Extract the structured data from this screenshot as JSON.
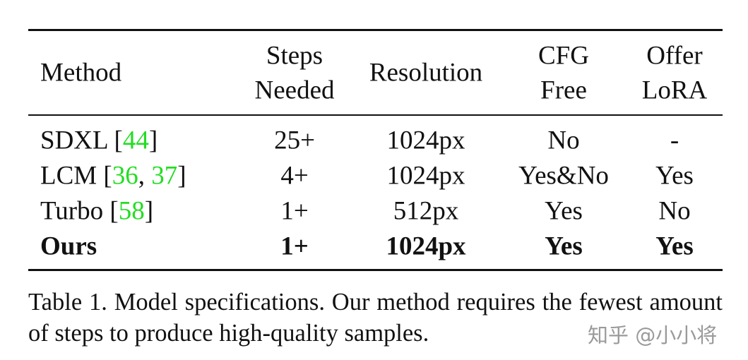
{
  "table": {
    "citation_color": "#22dd22",
    "header": [
      [
        "Method"
      ],
      [
        "Steps",
        "Needed"
      ],
      [
        "Resolution"
      ],
      [
        "CFG",
        "Free"
      ],
      [
        "Offer",
        "LoRA"
      ]
    ],
    "rows": [
      {
        "bold": false,
        "cells": [
          [
            {
              "text": "SDXL ["
            },
            {
              "text": "44",
              "cite": true
            },
            {
              "text": "]"
            }
          ],
          "25+",
          "1024px",
          "No",
          "-"
        ]
      },
      {
        "bold": false,
        "cells": [
          [
            {
              "text": "LCM ["
            },
            {
              "text": "36",
              "cite": true
            },
            {
              "text": ", "
            },
            {
              "text": "37",
              "cite": true
            },
            {
              "text": "]"
            }
          ],
          "4+",
          "1024px",
          "Yes&No",
          "Yes"
        ]
      },
      {
        "bold": false,
        "cells": [
          [
            {
              "text": "Turbo ["
            },
            {
              "text": "58",
              "cite": true
            },
            {
              "text": "]"
            }
          ],
          "1+",
          "512px",
          "Yes",
          "No"
        ]
      },
      {
        "bold": true,
        "cells": [
          [
            {
              "text": "Ours"
            }
          ],
          "1+",
          "1024px",
          "Yes",
          "Yes"
        ]
      }
    ]
  },
  "caption": "Table 1.  Model specifications.  Our method requires the fewest amount of steps to produce high-quality samples.",
  "watermark": "知乎 @小小将"
}
